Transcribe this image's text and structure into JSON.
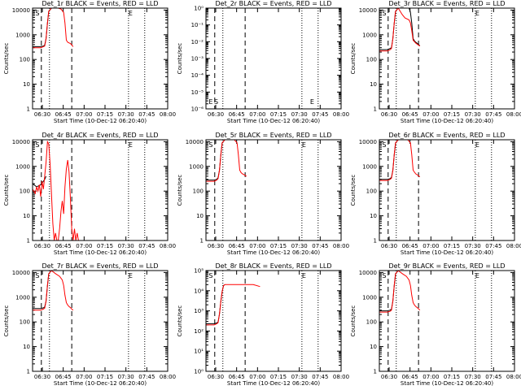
{
  "chart_data": [
    {
      "type": "line",
      "title": "Det_1r BLACK = Events, RED = LLD",
      "xlabel": "Start Time (10-Dec-12 06:20:40)",
      "ylabel": "Counts/sec",
      "yscale": "log",
      "ylim": [
        1,
        12000
      ],
      "xlim": [
        0,
        100
      ],
      "xtick_labels": [
        "06:30",
        "06:45",
        "07:00",
        "07:15",
        "07:30",
        "07:45",
        "08:00"
      ],
      "ytick_labels": [
        "1",
        "10",
        "100",
        "1000",
        "10000"
      ],
      "markers": [
        "S",
        "E"
      ],
      "series": [
        {
          "color": "#000000",
          "x": [
            0,
            6,
            8,
            9,
            10,
            11,
            12,
            14
          ],
          "y": [
            330,
            330,
            350,
            380,
            700,
            3000,
            9000,
            12000
          ]
        },
        {
          "color": "#ff0000",
          "x": [
            0,
            6,
            8,
            9,
            10,
            11,
            12,
            14,
            19,
            21,
            23,
            24,
            25,
            26,
            27,
            28,
            29,
            30
          ],
          "y": [
            300,
            300,
            330,
            350,
            700,
            3000,
            9000,
            12000,
            12000,
            11000,
            8000,
            3000,
            600,
            500,
            470,
            440,
            390,
            330
          ]
        }
      ]
    },
    {
      "type": "line",
      "title": "Det_2r BLACK = Events, RED = LLD",
      "xlabel": "Start Time (10-Dec-12 06:20:40)",
      "ylabel": "Counts/sec",
      "yscale": "log",
      "ylim": [
        1e-06,
        1
      ],
      "xlim": [
        0,
        100
      ],
      "xtick_labels": [
        "06:30",
        "06:45",
        "07:00",
        "07:15",
        "07:30",
        "07:45",
        "08:00"
      ],
      "ytick_labels": [
        "10⁻⁶",
        "10⁻⁵",
        "10⁻⁴",
        "10⁻³",
        "10⁻²",
        "10⁻¹",
        "10⁰"
      ],
      "markers": [
        "E",
        "S",
        "E"
      ],
      "series": []
    },
    {
      "type": "line",
      "title": "Det_3r BLACK = Events, RED = LLD",
      "xlabel": "Start Time (10-Dec-12 06:20:40)",
      "ylabel": "Counts/sec",
      "yscale": "log",
      "ylim": [
        1,
        12000
      ],
      "xlim": [
        0,
        100
      ],
      "xtick_labels": [
        "06:30",
        "06:45",
        "07:00",
        "07:15",
        "07:30",
        "07:45",
        "08:00"
      ],
      "ytick_labels": [
        "1",
        "10",
        "100",
        "1000",
        "10000"
      ],
      "markers": [
        "S",
        "E"
      ],
      "series": [
        {
          "color": "#000000",
          "x": [
            0,
            6,
            8,
            9,
            10,
            11,
            12,
            14,
            22,
            23,
            24,
            25,
            26,
            27,
            28,
            29,
            30
          ],
          "y": [
            250,
            250,
            280,
            300,
            700,
            3000,
            9000,
            12000,
            12000,
            8000,
            3000,
            700,
            560,
            500,
            450,
            400,
            360
          ]
        },
        {
          "color": "#ff0000",
          "x": [
            0,
            6,
            8,
            9,
            10,
            11,
            12,
            14,
            17,
            19,
            22,
            23,
            24,
            25,
            26,
            27,
            28,
            29,
            30
          ],
          "y": [
            220,
            220,
            250,
            280,
            700,
            3000,
            9000,
            12000,
            6500,
            4800,
            4000,
            3000,
            1500,
            600,
            520,
            460,
            420,
            380,
            350
          ]
        }
      ]
    },
    {
      "type": "line",
      "title": "Det_4r BLACK = Events, RED = LLD",
      "xlabel": "Start Time (10-Dec-12 06:20:40)",
      "ylabel": "Counts/sec",
      "yscale": "log",
      "ylim": [
        1,
        12000
      ],
      "xlim": [
        0,
        100
      ],
      "xtick_labels": [
        "06:30",
        "06:45",
        "07:00",
        "07:15",
        "07:30",
        "07:45",
        "08:00"
      ],
      "ytick_labels": [
        "1",
        "10",
        "100",
        "1000",
        "10000"
      ],
      "markers": [
        "S",
        "E"
      ],
      "series": [
        {
          "color": "#000000",
          "x": [
            0,
            3,
            6,
            8,
            9,
            10
          ],
          "y": [
            200,
            150,
            180,
            250,
            300,
            400
          ]
        },
        {
          "color": "#ff0000",
          "x": [
            0,
            2,
            3,
            4,
            5,
            6,
            7,
            8,
            9,
            10,
            11,
            12,
            13,
            14,
            15,
            16,
            17,
            18,
            19,
            20,
            21,
            22,
            23,
            24,
            25,
            26,
            27,
            28,
            29,
            30,
            31,
            32,
            33,
            34,
            35
          ],
          "y": [
            120,
            80,
            150,
            100,
            180,
            60,
            250,
            120,
            400,
            1500,
            10000,
            8000,
            1200,
            80,
            5,
            1,
            2,
            1,
            1,
            3,
            15,
            40,
            12,
            150,
            800,
            1800,
            600,
            50,
            3,
            1,
            3,
            1,
            2,
            1,
            1
          ]
        }
      ]
    },
    {
      "type": "line",
      "title": "Det_5r BLACK = Events, RED = LLD",
      "xlabel": "Start Time (10-Dec-12 06:20:40)",
      "ylabel": "Counts/sec",
      "yscale": "log",
      "ylim": [
        1,
        12000
      ],
      "xlim": [
        0,
        100
      ],
      "xtick_labels": [
        "06:30",
        "06:45",
        "07:00",
        "07:15",
        "07:30",
        "07:45",
        "08:00"
      ],
      "ytick_labels": [
        "1",
        "10",
        "100",
        "1000",
        "10000"
      ],
      "markers": [
        "S",
        "E"
      ],
      "series": [
        {
          "color": "#000000",
          "x": [
            0,
            6,
            8,
            9,
            10,
            11,
            12,
            14
          ],
          "y": [
            280,
            280,
            300,
            350,
            700,
            3000,
            9000,
            12000
          ]
        },
        {
          "color": "#ff0000",
          "x": [
            0,
            6,
            8,
            9,
            10,
            11,
            12,
            14,
            21,
            23,
            24,
            25,
            26,
            27,
            28,
            29,
            30
          ],
          "y": [
            250,
            250,
            280,
            320,
            700,
            3000,
            9000,
            12000,
            12000,
            9000,
            3000,
            700,
            560,
            500,
            470,
            430,
            400
          ]
        }
      ]
    },
    {
      "type": "line",
      "title": "Det_6r BLACK = Events, RED = LLD",
      "xlabel": "Start Time (10-Dec-12 06:20:40)",
      "ylabel": "Counts/sec",
      "yscale": "log",
      "ylim": [
        1,
        12000
      ],
      "xlim": [
        0,
        100
      ],
      "xtick_labels": [
        "06:30",
        "06:45",
        "07:00",
        "07:15",
        "07:30",
        "07:45",
        "08:00"
      ],
      "ytick_labels": [
        "1",
        "10",
        "100",
        "1000",
        "10000"
      ],
      "markers": [
        "S",
        "E"
      ],
      "series": [
        {
          "color": "#000000",
          "x": [
            0,
            6,
            8,
            9,
            10,
            11,
            12,
            14
          ],
          "y": [
            300,
            300,
            320,
            360,
            700,
            3000,
            9000,
            12000
          ]
        },
        {
          "color": "#ff0000",
          "x": [
            0,
            6,
            8,
            9,
            10,
            11,
            12,
            14,
            21,
            23,
            24,
            25,
            26,
            27,
            28,
            29,
            30
          ],
          "y": [
            270,
            270,
            300,
            330,
            700,
            3000,
            9000,
            12000,
            12000,
            9000,
            3000,
            700,
            580,
            500,
            460,
            420,
            380
          ]
        }
      ]
    },
    {
      "type": "line",
      "title": "Det_7r BLACK = Events, RED = LLD",
      "xlabel": "Start Time (10-Dec-12 06:20:40)",
      "ylabel": "Counts/sec",
      "yscale": "log",
      "ylim": [
        1,
        12000
      ],
      "xlim": [
        0,
        100
      ],
      "xtick_labels": [
        "06:30",
        "06:45",
        "07:00",
        "07:15",
        "07:30",
        "07:45",
        "08:00"
      ],
      "ytick_labels": [
        "1",
        "10",
        "100",
        "1000",
        "10000"
      ],
      "markers": [
        "S",
        "E"
      ],
      "series": [
        {
          "color": "#000000",
          "x": [
            0,
            6,
            8,
            9,
            10,
            11,
            12,
            14
          ],
          "y": [
            350,
            350,
            370,
            400,
            700,
            3000,
            9000,
            12000
          ]
        },
        {
          "color": "#ff0000",
          "x": [
            0,
            6,
            8,
            9,
            10,
            11,
            12,
            14,
            17,
            20,
            22,
            23,
            24,
            25,
            26,
            27,
            28,
            29,
            30
          ],
          "y": [
            300,
            300,
            330,
            360,
            700,
            3000,
            9000,
            12000,
            9000,
            7000,
            5000,
            3000,
            1200,
            600,
            480,
            420,
            380,
            330,
            300
          ]
        }
      ]
    },
    {
      "type": "line",
      "title": "Det_8r BLACK = Events, RED = LLD",
      "xlabel": "Start Time (10-Dec-12 06:20:40)",
      "ylabel": "Counts/sec",
      "yscale": "log",
      "ylim": [
        1,
        100000
      ],
      "xlim": [
        0,
        100
      ],
      "xtick_labels": [
        "06:30",
        "06:45",
        "07:00",
        "07:15",
        "07:30",
        "07:45",
        "08:00"
      ],
      "ytick_labels": [
        "10⁰",
        "10¹",
        "10²",
        "10³",
        "10⁴",
        "10⁵"
      ],
      "markers": [
        "S",
        "E"
      ],
      "series": [
        {
          "color": "#000000",
          "x": [
            0,
            6,
            8,
            9,
            10,
            11,
            12,
            13,
            14
          ],
          "y": [
            230,
            230,
            250,
            280,
            700,
            3000,
            9000,
            18000,
            20000
          ]
        },
        {
          "color": "#ff0000",
          "x": [
            0,
            6,
            8,
            9,
            10,
            11,
            12,
            13,
            14,
            20,
            25,
            30,
            35,
            40
          ],
          "y": [
            200,
            200,
            230,
            260,
            700,
            3000,
            9000,
            18000,
            20000,
            20000,
            20000,
            20000,
            20000,
            16000
          ]
        }
      ]
    },
    {
      "type": "line",
      "title": "Det_9r BLACK = Events, RED = LLD",
      "xlabel": "Start Time (10-Dec-12 06:20:40)",
      "ylabel": "Counts/sec",
      "yscale": "log",
      "ylim": [
        1,
        12000
      ],
      "xlim": [
        0,
        100
      ],
      "xtick_labels": [
        "06:30",
        "06:45",
        "07:00",
        "07:15",
        "07:30",
        "07:45",
        "08:00"
      ],
      "ytick_labels": [
        "1",
        "10",
        "100",
        "1000",
        "10000"
      ],
      "markers": [
        "S",
        "E"
      ],
      "series": [
        {
          "color": "#000000",
          "x": [
            0,
            6,
            8,
            9,
            10,
            11,
            12,
            14
          ],
          "y": [
            280,
            280,
            300,
            330,
            700,
            3000,
            9000,
            12000
          ]
        },
        {
          "color": "#ff0000",
          "x": [
            0,
            6,
            8,
            9,
            10,
            11,
            12,
            14,
            17,
            20,
            22,
            23,
            24,
            25,
            26,
            27,
            28,
            29,
            30
          ],
          "y": [
            250,
            250,
            270,
            300,
            700,
            3000,
            9000,
            12000,
            9000,
            7000,
            5000,
            3000,
            1200,
            600,
            480,
            420,
            380,
            340,
            300
          ]
        }
      ]
    }
  ]
}
